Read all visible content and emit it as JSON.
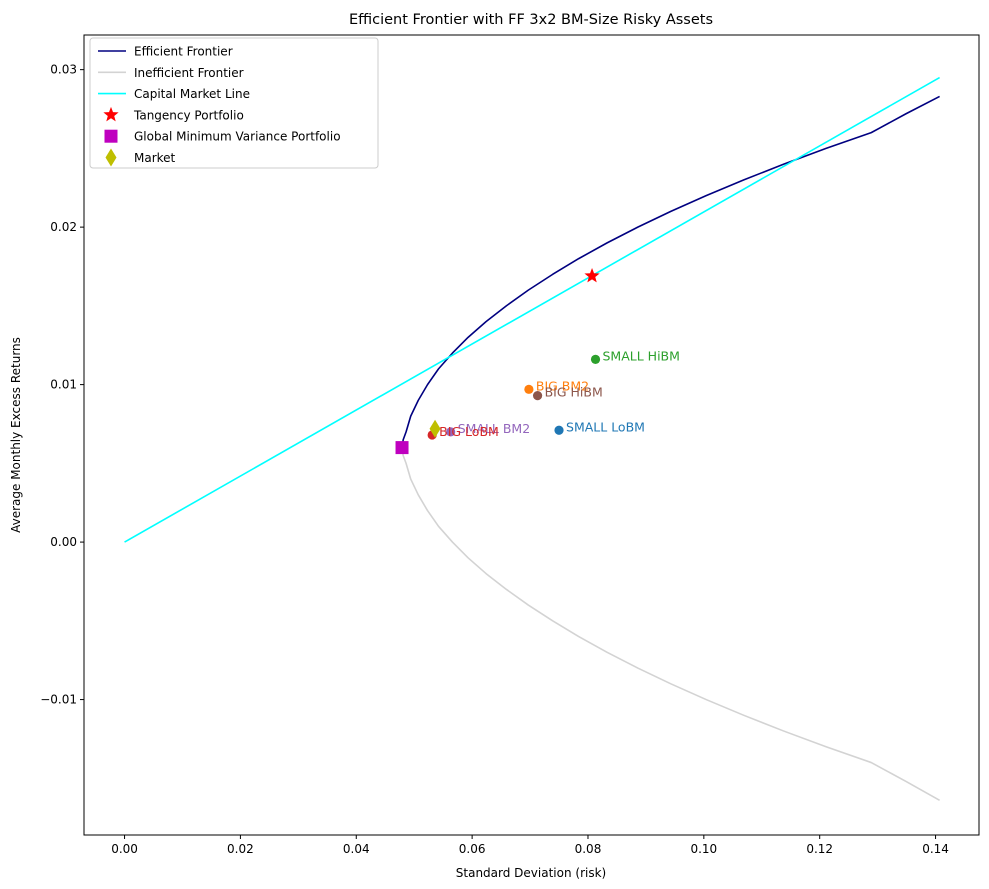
{
  "chart_data": {
    "type": "line",
    "title": "Efficient Frontier with FF 3x2 BM-Size Risky Assets",
    "xlabel": "Standard Deviation (risk)",
    "ylabel": "Average Monthly Excess Returns",
    "xlim": [
      -0.007,
      0.1475
    ],
    "ylim": [
      -0.0186,
      0.0322
    ],
    "xticks": [
      0.0,
      0.02,
      0.04,
      0.06,
      0.08,
      0.1,
      0.12,
      0.14
    ],
    "xtick_labels": [
      "0.00",
      "0.02",
      "0.04",
      "0.06",
      "0.08",
      "0.10",
      "0.12",
      "0.14"
    ],
    "yticks": [
      -0.01,
      0.0,
      0.01,
      0.02,
      0.03
    ],
    "ytick_labels": [
      "−0.01",
      "0.00",
      "0.01",
      "0.02",
      "0.03"
    ],
    "grid": false,
    "legend_position": "upper-left",
    "series": [
      {
        "name": "Efficient Frontier",
        "color": "#000080",
        "x": [
          0.0479,
          0.0481,
          0.0486,
          0.0494,
          0.0507,
          0.0523,
          0.0542,
          0.0566,
          0.0593,
          0.0624,
          0.0659,
          0.0697,
          0.0739,
          0.0784,
          0.0833,
          0.0886,
          0.0943,
          0.1004,
          0.1069,
          0.1138,
          0.1211,
          0.1289,
          0.1349,
          0.1407
        ],
        "y": [
          0.006,
          0.0065,
          0.007,
          0.008,
          0.009,
          0.01,
          0.011,
          0.012,
          0.013,
          0.014,
          0.015,
          0.016,
          0.017,
          0.018,
          0.019,
          0.02,
          0.021,
          0.022,
          0.023,
          0.024,
          0.025,
          0.026,
          0.0272,
          0.0283
        ]
      },
      {
        "name": "Inefficient Frontier",
        "color": "#d3d3d3",
        "x": [
          0.0479,
          0.0481,
          0.0486,
          0.0494,
          0.0507,
          0.0523,
          0.0542,
          0.0566,
          0.0593,
          0.0624,
          0.0659,
          0.0697,
          0.0739,
          0.0784,
          0.0833,
          0.0886,
          0.0943,
          0.1004,
          0.1069,
          0.1138,
          0.1211,
          0.1289,
          0.1349,
          0.1407
        ],
        "y": [
          0.006,
          0.0055,
          0.005,
          0.004,
          0.003,
          0.002,
          0.001,
          0.0,
          -0.001,
          -0.002,
          -0.003,
          -0.004,
          -0.005,
          -0.006,
          -0.007,
          -0.008,
          -0.009,
          -0.01,
          -0.011,
          -0.012,
          -0.013,
          -0.014,
          -0.0152,
          -0.0164
        ]
      },
      {
        "name": "Capital Market Line",
        "color": "#00ffff",
        "x": [
          0.0,
          0.1407
        ],
        "y": [
          0.0,
          0.0295
        ]
      }
    ],
    "special_points": [
      {
        "name": "Tangency Portfolio",
        "marker": "star",
        "color": "#ff0000",
        "x": 0.0807,
        "y": 0.0169
      },
      {
        "name": "Global Minimum Variance Portfolio",
        "marker": "square",
        "color": "#bf00bf",
        "x": 0.0479,
        "y": 0.006
      },
      {
        "name": "Market",
        "marker": "diamond",
        "color": "#bfbf00",
        "x": 0.0536,
        "y": 0.0072
      }
    ],
    "assets": [
      {
        "label": "SMALL LoBM",
        "color": "#1f77b4",
        "x": 0.075,
        "y": 0.0071
      },
      {
        "label": "SMALL BM2",
        "color": "#9467bd",
        "x": 0.0563,
        "y": 0.007
      },
      {
        "label": "SMALL HiBM",
        "color": "#2ca02c",
        "x": 0.0813,
        "y": 0.0116
      },
      {
        "label": "BIG LoBM",
        "color": "#d62728",
        "x": 0.0531,
        "y": 0.0068
      },
      {
        "label": "BIG BM2",
        "color": "#ff7f0e",
        "x": 0.0698,
        "y": 0.0097
      },
      {
        "label": "BIG HiBM",
        "color": "#8c564b",
        "x": 0.0713,
        "y": 0.0093
      }
    ]
  }
}
